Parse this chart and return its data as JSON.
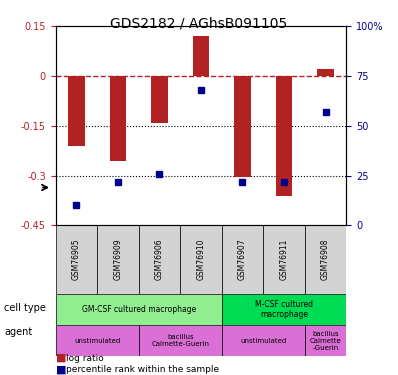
{
  "title": "GDS2182 / AGhsB091105",
  "samples": [
    "GSM76905",
    "GSM76909",
    "GSM76906",
    "GSM76910",
    "GSM76907",
    "GSM76911",
    "GSM76908"
  ],
  "log_ratio": [
    -0.21,
    -0.255,
    -0.14,
    0.12,
    -0.305,
    -0.36,
    0.02
  ],
  "percentile_rank": [
    10,
    22,
    26,
    68,
    22,
    22,
    57
  ],
  "ylim_left": [
    -0.45,
    0.15
  ],
  "ylim_right": [
    0,
    100
  ],
  "left_ticks": [
    0.15,
    0,
    -0.15,
    -0.3,
    -0.45
  ],
  "right_ticks": [
    100,
    75,
    50,
    25,
    0
  ],
  "hlines": [
    0,
    -0.15,
    -0.3
  ],
  "bar_color": "#b22222",
  "dot_color": "#00008b",
  "bar_width": 0.4,
  "cell_type_colors": [
    "#90ee90",
    "#00cc44"
  ],
  "agent_colors": [
    "#da70d6",
    "#da70d6",
    "#da70d6",
    "#da70d6"
  ],
  "cell_types": [
    {
      "label": "GM-CSF cultured macrophage",
      "span": [
        0,
        3
      ],
      "color": "#90ee90"
    },
    {
      "label": "M-CSF cultured\nmacrophage",
      "span": [
        4,
        6
      ],
      "color": "#00dd55"
    }
  ],
  "agents": [
    {
      "label": "unstimulated",
      "span": [
        0,
        1
      ],
      "color": "#da70d6"
    },
    {
      "label": "bacillus\nCalmette-Guerin",
      "span": [
        2,
        3
      ],
      "color": "#da70d6"
    },
    {
      "label": "unstimulated",
      "span": [
        4,
        5
      ],
      "color": "#da70d6"
    },
    {
      "label": "bacillus\nCalmette\n-Guerin",
      "span": [
        6,
        6
      ],
      "color": "#da70d6"
    }
  ],
  "legend_items": [
    {
      "color": "#b22222",
      "label": "log ratio"
    },
    {
      "color": "#00008b",
      "label": "percentile rank within the sample"
    }
  ]
}
